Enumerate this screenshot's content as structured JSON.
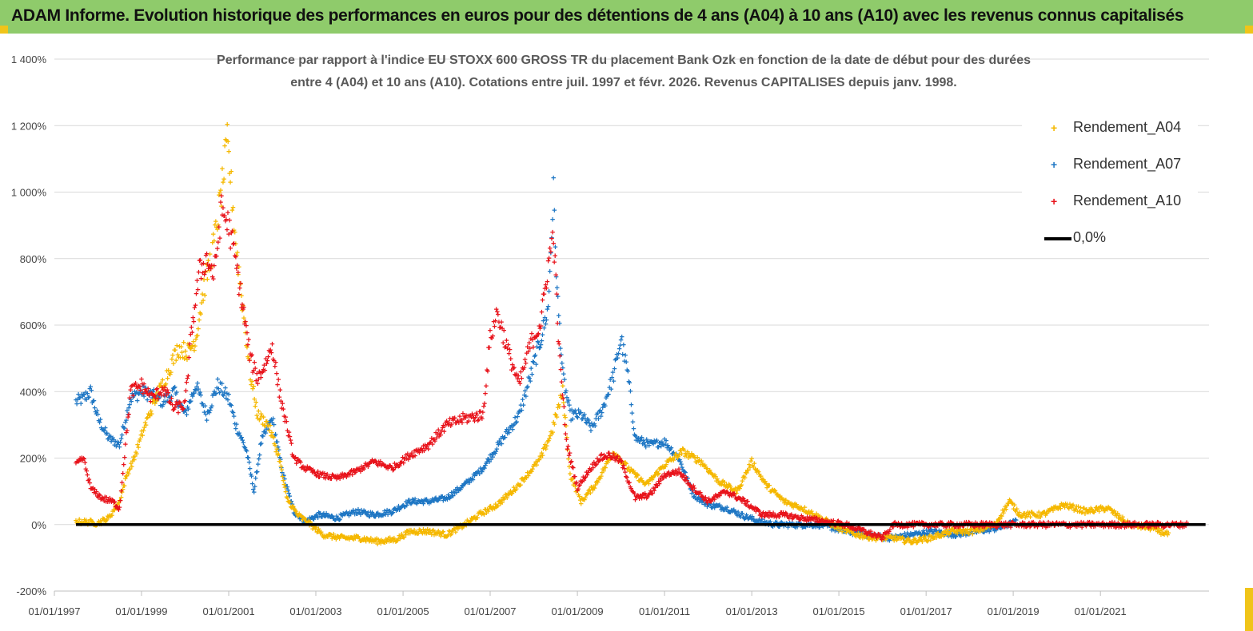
{
  "header": {
    "title": "ADAM Informe. Evolution historique des performances en euros pour des détentions de 4 ans (A04) à 10 ans (A10) avec les revenus connus capitalisés"
  },
  "colors": {
    "header_bg": "#8fcb6b",
    "a04": "#f5b800",
    "a07": "#1f77c4",
    "a10": "#e8141c",
    "zero": "#000000"
  },
  "chart_data": {
    "type": "scatter",
    "title": "Performance par rapport à l'indice EU STOXX 600 GROSS TR  du placement Bank Ozk en fonction de la date de début pour des durées entre 4 (A04) et 10 ans (A10). Cotations entre juil. 1997 et févr. 2026. Revenus CAPITALISES depuis janv. 1998.",
    "title_lines": [
      "Performance par rapport à l'indice EU STOXX 600 GROSS TR  du placement Bank Ozk en fonction de la date de début pour des durées",
      "entre 4 (A04) et 10 ans (A10). Cotations entre juil. 1997 et févr. 2026. Revenus CAPITALISES depuis janv. 1998."
    ],
    "xlabel": "",
    "ylabel": "",
    "xlim": [
      "1997-01-01",
      "2023-06-30"
    ],
    "ylim": [
      -200,
      1400
    ],
    "y_ticks": [
      -200,
      0,
      200,
      400,
      600,
      800,
      1000,
      1200,
      1400
    ],
    "y_tick_labels": [
      "-200%",
      "0%",
      "200%",
      "400%",
      "600%",
      "800%",
      "1 000%",
      "1 200%",
      "1 400%"
    ],
    "x_ticks": [
      "1997-01-01",
      "1999-01-01",
      "2001-01-01",
      "2003-01-01",
      "2005-01-01",
      "2007-01-01",
      "2009-01-01",
      "2011-01-01",
      "2013-01-01",
      "2015-01-01",
      "2017-01-01",
      "2019-01-01",
      "2021-01-01"
    ],
    "x_tick_labels": [
      "01/01/1997",
      "01/01/1999",
      "01/01/2001",
      "01/01/2003",
      "01/01/2005",
      "01/01/2007",
      "01/01/2009",
      "01/01/2011",
      "01/01/2013",
      "01/01/2015",
      "01/01/2017",
      "01/01/2019",
      "01/01/2021"
    ],
    "grid": "horizontal",
    "legend_position": "top-right",
    "series": [
      {
        "name": "Rendement_A04",
        "color": "#f5b800",
        "points": [
          [
            "1997-07-01",
            10
          ],
          [
            "1997-10-01",
            8
          ],
          [
            "1998-01-01",
            5
          ],
          [
            "1998-04-01",
            20
          ],
          [
            "1998-07-01",
            70
          ],
          [
            "1998-09-01",
            150
          ],
          [
            "1998-11-01",
            200
          ],
          [
            "1999-02-01",
            300
          ],
          [
            "1999-05-01",
            380
          ],
          [
            "1999-08-01",
            450
          ],
          [
            "1999-11-01",
            530
          ],
          [
            "2000-02-01",
            520
          ],
          [
            "2000-04-01",
            560
          ],
          [
            "2000-06-01",
            700
          ],
          [
            "2000-09-01",
            850
          ],
          [
            "2000-11-01",
            1000
          ],
          [
            "2000-12-20",
            1150
          ],
          [
            "2001-01-15",
            1050
          ],
          [
            "2001-03-01",
            850
          ],
          [
            "2001-05-01",
            650
          ],
          [
            "2001-07-01",
            450
          ],
          [
            "2001-09-01",
            330
          ],
          [
            "2001-12-01",
            300
          ],
          [
            "2002-03-01",
            200
          ],
          [
            "2002-05-01",
            80
          ],
          [
            "2002-08-01",
            30
          ],
          [
            "2002-11-01",
            5
          ],
          [
            "2003-03-01",
            -30
          ],
          [
            "2003-08-01",
            -40
          ],
          [
            "2004-01-01",
            -40
          ],
          [
            "2004-06-01",
            -50
          ],
          [
            "2004-11-01",
            -45
          ],
          [
            "2005-03-01",
            -20
          ],
          [
            "2005-08-01",
            -20
          ],
          [
            "2006-01-01",
            -30
          ],
          [
            "2006-06-01",
            0
          ],
          [
            "2006-10-01",
            30
          ],
          [
            "2007-03-01",
            60
          ],
          [
            "2007-08-01",
            110
          ],
          [
            "2007-12-01",
            160
          ],
          [
            "2008-03-01",
            200
          ],
          [
            "2008-06-01",
            280
          ],
          [
            "2008-09-01",
            400
          ],
          [
            "2008-11-01",
            150
          ],
          [
            "2009-02-01",
            70
          ],
          [
            "2009-06-01",
            120
          ],
          [
            "2009-11-01",
            220
          ],
          [
            "2010-03-01",
            170
          ],
          [
            "2010-08-01",
            120
          ],
          [
            "2011-01-01",
            180
          ],
          [
            "2011-06-01",
            220
          ],
          [
            "2011-11-01",
            190
          ],
          [
            "2012-04-01",
            130
          ],
          [
            "2012-09-01",
            100
          ],
          [
            "2013-01-01",
            190
          ],
          [
            "2013-05-01",
            120
          ],
          [
            "2013-10-01",
            70
          ],
          [
            "2014-03-01",
            50
          ],
          [
            "2014-08-01",
            20
          ],
          [
            "2015-01-01",
            -10
          ],
          [
            "2015-06-01",
            -30
          ],
          [
            "2015-11-01",
            -40
          ],
          [
            "2016-04-01",
            -40
          ],
          [
            "2016-09-01",
            -50
          ],
          [
            "2017-02-01",
            -40
          ],
          [
            "2017-08-01",
            -20
          ],
          [
            "2018-02-01",
            -20
          ],
          [
            "2018-08-01",
            0
          ],
          [
            "2018-12-01",
            70
          ],
          [
            "2019-03-01",
            30
          ],
          [
            "2019-09-01",
            30
          ],
          [
            "2020-03-01",
            60
          ],
          [
            "2020-09-01",
            40
          ],
          [
            "2021-03-01",
            50
          ],
          [
            "2021-09-01",
            0
          ],
          [
            "2022-03-01",
            -10
          ],
          [
            "2022-08-01",
            -30
          ]
        ]
      },
      {
        "name": "Rendement_A07",
        "color": "#1f77c4",
        "points": [
          [
            "1997-07-01",
            370
          ],
          [
            "1997-09-01",
            380
          ],
          [
            "1997-11-01",
            400
          ],
          [
            "1998-01-01",
            320
          ],
          [
            "1998-04-01",
            260
          ],
          [
            "1998-07-01",
            240
          ],
          [
            "1998-10-01",
            380
          ],
          [
            "1999-01-01",
            400
          ],
          [
            "1999-04-01",
            390
          ],
          [
            "1999-07-01",
            370
          ],
          [
            "1999-10-01",
            400
          ],
          [
            "2000-01-01",
            330
          ],
          [
            "2000-04-01",
            420
          ],
          [
            "2000-07-01",
            330
          ],
          [
            "2000-10-01",
            420
          ],
          [
            "2001-01-01",
            380
          ],
          [
            "2001-03-01",
            300
          ],
          [
            "2001-06-01",
            220
          ],
          [
            "2001-08-01",
            100
          ],
          [
            "2001-10-01",
            250
          ],
          [
            "2002-01-01",
            320
          ],
          [
            "2002-04-01",
            150
          ],
          [
            "2002-07-01",
            40
          ],
          [
            "2002-10-01",
            10
          ],
          [
            "2003-02-01",
            30
          ],
          [
            "2003-07-01",
            20
          ],
          [
            "2003-12-01",
            40
          ],
          [
            "2004-05-01",
            30
          ],
          [
            "2004-10-01",
            40
          ],
          [
            "2005-03-01",
            70
          ],
          [
            "2005-08-01",
            70
          ],
          [
            "2006-01-01",
            80
          ],
          [
            "2006-06-01",
            120
          ],
          [
            "2006-11-01",
            170
          ],
          [
            "2007-04-01",
            250
          ],
          [
            "2007-09-01",
            330
          ],
          [
            "2008-01-01",
            480
          ],
          [
            "2008-03-01",
            560
          ],
          [
            "2008-05-01",
            650
          ],
          [
            "2008-06-15",
            1000
          ],
          [
            "2008-07-15",
            700
          ],
          [
            "2008-09-01",
            450
          ],
          [
            "2008-11-01",
            330
          ],
          [
            "2009-02-01",
            330
          ],
          [
            "2009-05-01",
            290
          ],
          [
            "2009-08-01",
            350
          ],
          [
            "2009-11-01",
            450
          ],
          [
            "2010-01-01",
            560
          ],
          [
            "2010-03-01",
            450
          ],
          [
            "2010-05-01",
            260
          ],
          [
            "2010-09-01",
            240
          ],
          [
            "2011-01-01",
            250
          ],
          [
            "2011-05-01",
            200
          ],
          [
            "2011-09-01",
            90
          ],
          [
            "2012-01-01",
            60
          ],
          [
            "2012-06-01",
            50
          ],
          [
            "2012-10-01",
            30
          ],
          [
            "2013-03-01",
            10
          ],
          [
            "2013-08-01",
            0
          ],
          [
            "2014-02-01",
            0
          ],
          [
            "2014-08-01",
            0
          ],
          [
            "2015-03-01",
            -20
          ],
          [
            "2015-09-01",
            -30
          ],
          [
            "2016-03-01",
            -40
          ],
          [
            "2016-09-01",
            -30
          ],
          [
            "2017-03-01",
            -20
          ],
          [
            "2017-09-01",
            -30
          ],
          [
            "2018-03-01",
            -20
          ],
          [
            "2018-09-01",
            -10
          ],
          [
            "2019-02-01",
            10
          ]
        ]
      },
      {
        "name": "Rendement_A10",
        "color": "#e8141c",
        "points": [
          [
            "1997-07-01",
            180
          ],
          [
            "1997-09-01",
            200
          ],
          [
            "1997-11-01",
            110
          ],
          [
            "1998-02-01",
            80
          ],
          [
            "1998-05-01",
            70
          ],
          [
            "1998-07-01",
            50
          ],
          [
            "1998-10-01",
            400
          ],
          [
            "1999-01-01",
            420
          ],
          [
            "1999-04-01",
            380
          ],
          [
            "1999-07-01",
            410
          ],
          [
            "1999-10-01",
            350
          ],
          [
            "2000-01-01",
            360
          ],
          [
            "2000-03-01",
            600
          ],
          [
            "2000-05-01",
            760
          ],
          [
            "2000-07-01",
            800
          ],
          [
            "2000-09-01",
            750
          ],
          [
            "2000-11-01",
            950
          ],
          [
            "2001-01-01",
            900
          ],
          [
            "2001-03-01",
            790
          ],
          [
            "2001-05-01",
            650
          ],
          [
            "2001-07-01",
            500
          ],
          [
            "2001-09-01",
            440
          ],
          [
            "2001-11-01",
            480
          ],
          [
            "2002-01-01",
            540
          ],
          [
            "2002-03-01",
            400
          ],
          [
            "2002-05-01",
            300
          ],
          [
            "2002-07-01",
            200
          ],
          [
            "2002-10-01",
            170
          ],
          [
            "2003-02-01",
            150
          ],
          [
            "2003-07-01",
            140
          ],
          [
            "2003-12-01",
            160
          ],
          [
            "2004-05-01",
            190
          ],
          [
            "2004-10-01",
            170
          ],
          [
            "2005-03-01",
            210
          ],
          [
            "2005-08-01",
            240
          ],
          [
            "2006-01-01",
            300
          ],
          [
            "2006-06-01",
            320
          ],
          [
            "2006-11-01",
            330
          ],
          [
            "2007-01-01",
            560
          ],
          [
            "2007-03-01",
            640
          ],
          [
            "2007-06-01",
            520
          ],
          [
            "2007-09-01",
            420
          ],
          [
            "2007-12-01",
            540
          ],
          [
            "2008-03-01",
            610
          ],
          [
            "2008-05-01",
            780
          ],
          [
            "2008-06-15",
            880
          ],
          [
            "2008-08-01",
            520
          ],
          [
            "2008-10-01",
            250
          ],
          [
            "2009-01-01",
            110
          ],
          [
            "2009-04-01",
            160
          ],
          [
            "2009-07-01",
            200
          ],
          [
            "2009-10-01",
            210
          ],
          [
            "2010-01-01",
            190
          ],
          [
            "2010-05-01",
            80
          ],
          [
            "2010-09-01",
            90
          ],
          [
            "2011-01-01",
            150
          ],
          [
            "2011-05-01",
            160
          ],
          [
            "2011-09-01",
            110
          ],
          [
            "2012-01-01",
            70
          ],
          [
            "2012-06-01",
            100
          ],
          [
            "2012-11-01",
            70
          ],
          [
            "2013-04-01",
            30
          ],
          [
            "2013-09-01",
            30
          ],
          [
            "2014-03-01",
            20
          ],
          [
            "2014-09-01",
            10
          ],
          [
            "2015-03-01",
            0
          ],
          [
            "2015-08-01",
            -20
          ],
          [
            "2016-01-01",
            -40
          ],
          [
            "2016-04-01",
            0
          ],
          [
            "2017-01-01",
            0
          ],
          [
            "2018-01-01",
            0
          ],
          [
            "2019-01-01",
            0
          ],
          [
            "2020-01-01",
            0
          ],
          [
            "2021-01-01",
            0
          ],
          [
            "2022-01-01",
            0
          ],
          [
            "2023-01-01",
            0
          ]
        ]
      }
    ],
    "reference_line": {
      "name": "0,0%",
      "y": 0,
      "color": "#000000",
      "x_start": "1997-07-01",
      "x_end": "2023-06-01"
    }
  }
}
